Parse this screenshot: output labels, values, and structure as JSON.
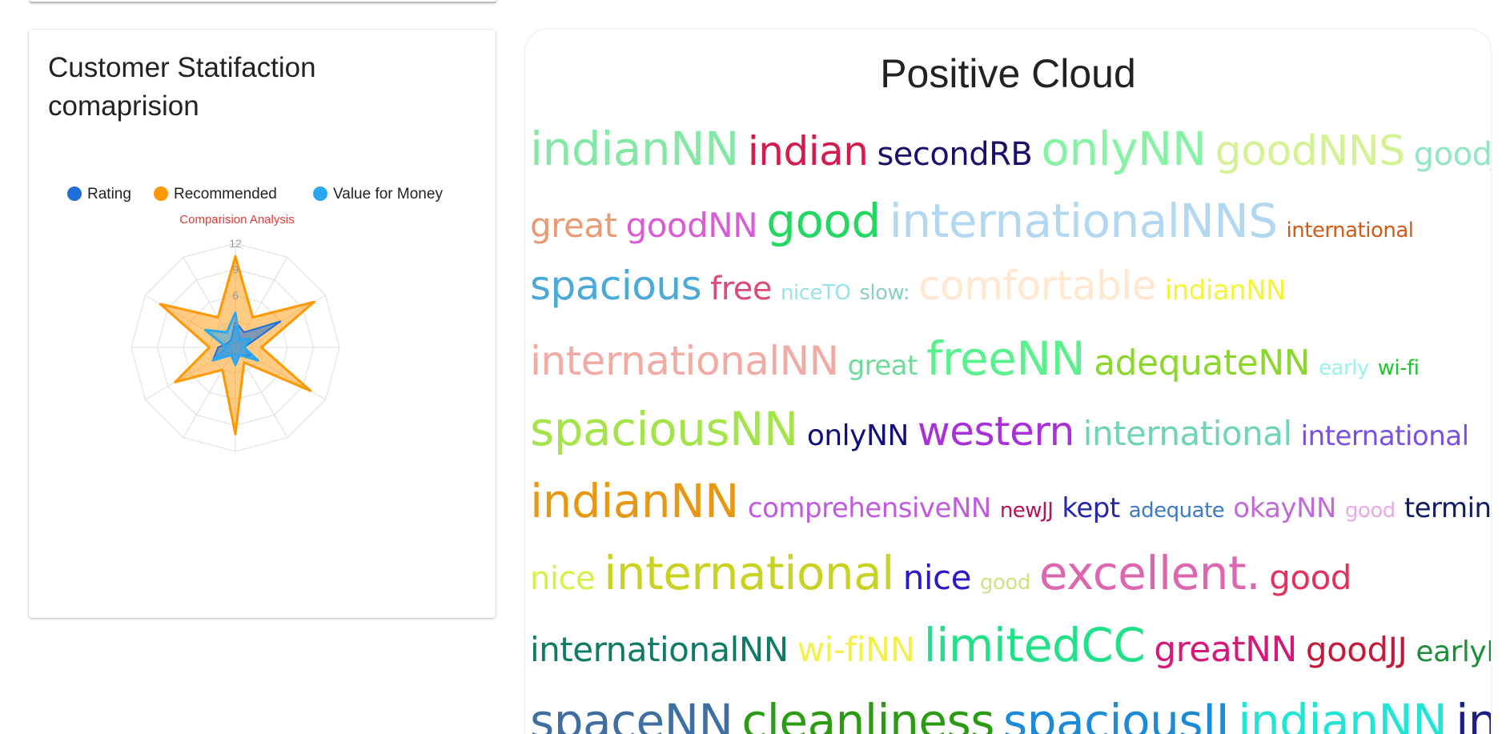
{
  "left_card": {
    "title": "Customer Statifaction comaprision"
  },
  "right_card": {
    "title": "Positive Cloud"
  },
  "chart_data": {
    "type": "radar",
    "title": "Comparision Analysis",
    "title_color": "#e53935",
    "legend_position": "top",
    "series": [
      {
        "name": "Rating",
        "color": "#1e6fd9",
        "values": [
          3,
          2,
          6,
          1,
          2,
          1,
          2,
          1,
          3,
          2,
          1,
          1
        ]
      },
      {
        "name": "Recommended",
        "color": "#ff9800",
        "values": [
          10.5,
          4,
          10.5,
          3,
          10,
          2,
          10,
          3,
          8,
          3,
          10,
          4
        ]
      },
      {
        "name": "Value for Money",
        "color": "#29a8f0",
        "values": [
          4,
          1,
          2,
          1,
          3,
          1,
          2,
          1,
          3,
          1,
          4,
          2
        ]
      }
    ],
    "axis_ticks": [
      "0",
      "3",
      "6",
      "9",
      "12"
    ],
    "rmax": 12,
    "spokes": 12,
    "grid": true
  },
  "word_cloud": {
    "lines": [
      [
        {
          "text": "indianNN",
          "size": 58,
          "color": "#85e7a6"
        },
        {
          "text": "indian",
          "size": 50,
          "color": "#d41b4e"
        },
        {
          "text": "secondRB",
          "size": 40,
          "color": "#1b0f6b"
        },
        {
          "text": "onlyNN",
          "size": 58,
          "color": "#86f2a3"
        },
        {
          "text": "goodNNS",
          "size": 52,
          "color": "#d2f293"
        },
        {
          "text": "goodJJ",
          "size": 40,
          "color": "#8fe8c2"
        }
      ],
      [
        {
          "text": "great",
          "size": 42,
          "color": "#e89a72"
        },
        {
          "text": "goodNN",
          "size": 42,
          "color": "#d95cd5"
        },
        {
          "text": "good",
          "size": 58,
          "color": "#22d861"
        },
        {
          "text": "internationalNNS",
          "size": 58,
          "color": "#b2d7f0"
        },
        {
          "text": "international",
          "size": 26,
          "color": "#d35916"
        }
      ],
      [
        {
          "text": "spacious",
          "size": 50,
          "color": "#4aa9d8"
        },
        {
          "text": "free",
          "size": 40,
          "color": "#d74d76"
        },
        {
          "text": "niceTO",
          "size": 26,
          "color": "#94e3e6"
        },
        {
          "text": "slow:",
          "size": 26,
          "color": "#89cfc6"
        },
        {
          "text": "comfortable",
          "size": 50,
          "color": "#ffe7d0"
        },
        {
          "text": "indianNN",
          "size": 34,
          "color": "#f4f437"
        }
      ],
      [
        {
          "text": "internationalNN",
          "size": 50,
          "color": "#f1aaa4"
        },
        {
          "text": "great",
          "size": 34,
          "color": "#6ddc9b"
        },
        {
          "text": "freeNN",
          "size": 58,
          "color": "#5af08d"
        },
        {
          "text": "adequateNN",
          "size": 44,
          "color": "#8cd72c"
        },
        {
          "text": "early",
          "size": 26,
          "color": "#98f2ee"
        },
        {
          "text": "wi-fi",
          "size": 26,
          "color": "#22c12f"
        }
      ],
      [
        {
          "text": "spaciousNN",
          "size": 58,
          "color": "#a4e34a"
        },
        {
          "text": "onlyNN",
          "size": 36,
          "color": "#11107a"
        },
        {
          "text": "western",
          "size": 50,
          "color": "#a832d8"
        },
        {
          "text": "international",
          "size": 42,
          "color": "#6ed3b8"
        },
        {
          "text": "international",
          "size": 34,
          "color": "#7b4fe0"
        }
      ],
      [
        {
          "text": "indianNN",
          "size": 58,
          "color": "#e69814"
        },
        {
          "text": "comprehensiveNN",
          "size": 34,
          "color": "#c05be0"
        },
        {
          "text": "newJJ",
          "size": 26,
          "color": "#b41357"
        },
        {
          "text": "kept",
          "size": 34,
          "color": "#2628a8"
        },
        {
          "text": "adequate",
          "size": 26,
          "color": "#3a7ac6"
        },
        {
          "text": "okayNN",
          "size": 34,
          "color": "#c06ad6"
        },
        {
          "text": "good",
          "size": 26,
          "color": "#eaa8e6"
        },
        {
          "text": "terminal",
          "size": 34,
          "color": "#111c66"
        }
      ],
      [
        {
          "text": "nice",
          "size": 40,
          "color": "#d5f04a"
        },
        {
          "text": "international",
          "size": 58,
          "color": "#c9d222"
        },
        {
          "text": "nice",
          "size": 42,
          "color": "#2b18c9"
        },
        {
          "text": "good",
          "size": 26,
          "color": "#cfe085"
        },
        {
          "text": "excellent.",
          "size": 58,
          "color": "#dd66b0"
        },
        {
          "text": "good",
          "size": 42,
          "color": "#e0315f"
        }
      ],
      [
        {
          "text": "internationalNN",
          "size": 42,
          "color": "#0f7a66"
        },
        {
          "text": "wi-fiNN",
          "size": 42,
          "color": "#f2f04a"
        },
        {
          "text": "limitedCC",
          "size": 58,
          "color": "#22e08a"
        },
        {
          "text": "greatNN",
          "size": 44,
          "color": "#d6187a"
        },
        {
          "text": "goodJJ",
          "size": 42,
          "color": "#c41a3a"
        },
        {
          "text": "earlyIN",
          "size": 36,
          "color": "#1c8e3a"
        }
      ],
      [
        {
          "text": "spaceNN",
          "size": 58,
          "color": "#3e6ea2"
        },
        {
          "text": "cleanliness",
          "size": 58,
          "color": "#2a9b12"
        },
        {
          "text": "spaciousJJ",
          "size": 58,
          "color": "#1d8ad6"
        },
        {
          "text": "indianNN",
          "size": 58,
          "color": "#22e4d5"
        },
        {
          "text": "international",
          "size": 58,
          "color": "#1c1d8a"
        }
      ]
    ]
  }
}
